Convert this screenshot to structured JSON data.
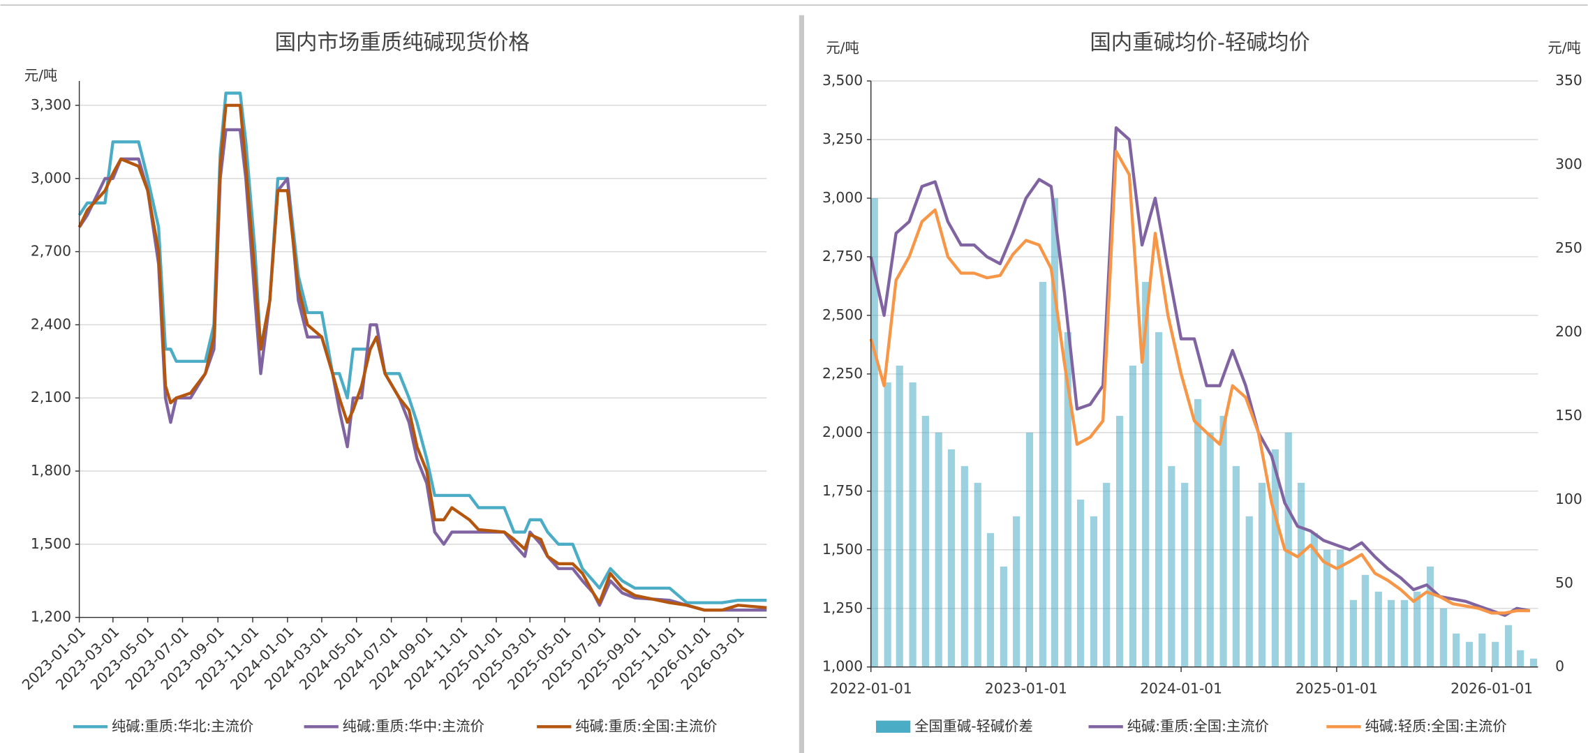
{
  "chart_data": [
    {
      "type": "line",
      "title": "国内市场重质纯碱现货价格",
      "y_label": "元/吨",
      "grid": true,
      "xlim": [
        "2023-01-01",
        "2026-04-20"
      ],
      "xticks": [
        "2023-01-01",
        "2023-03-01",
        "2023-05-01",
        "2023-07-01",
        "2023-09-01",
        "2023-11-01",
        "2024-01-01",
        "2024-03-01",
        "2024-05-01",
        "2024-07-01",
        "2024-09-01",
        "2024-11-01",
        "2025-01-01",
        "2025-03-01",
        "2025-05-01",
        "2025-07-01",
        "2025-09-01",
        "2025-11-01",
        "2026-01-01",
        "2026-03-01"
      ],
      "ylim": [
        1200,
        3400
      ],
      "yticks": [
        {
          "value": 1200,
          "label": "1,200"
        },
        {
          "value": 1500,
          "label": "1,500"
        },
        {
          "value": 1800,
          "label": "1,800"
        },
        {
          "value": 2100,
          "label": "2,100"
        },
        {
          "value": 2400,
          "label": "2,400"
        },
        {
          "value": 2700,
          "label": "2,700"
        },
        {
          "value": 3000,
          "label": "3,000"
        },
        {
          "value": 3300,
          "label": "3,300"
        }
      ],
      "x": [
        "2023-01-01",
        "2023-01-15",
        "2023-02-15",
        "2023-03-01",
        "2023-03-15",
        "2023-04-15",
        "2023-05-01",
        "2023-05-20",
        "2023-06-01",
        "2023-06-10",
        "2023-06-20",
        "2023-07-15",
        "2023-08-10",
        "2023-08-25",
        "2023-09-05",
        "2023-09-15",
        "2023-10-10",
        "2023-10-20",
        "2023-11-05",
        "2023-11-15",
        "2023-12-01",
        "2023-12-15",
        "2024-01-01",
        "2024-01-20",
        "2024-02-05",
        "2024-03-01",
        "2024-03-20",
        "2024-04-01",
        "2024-04-15",
        "2024-04-25",
        "2024-05-10",
        "2024-05-25",
        "2024-06-05",
        "2024-06-20",
        "2024-07-15",
        "2024-08-01",
        "2024-08-15",
        "2024-09-01",
        "2024-09-15",
        "2024-10-01",
        "2024-10-15",
        "2024-11-15",
        "2024-12-01",
        "2025-01-15",
        "2025-02-01",
        "2025-02-20",
        "2025-03-01",
        "2025-03-20",
        "2025-04-01",
        "2025-04-20",
        "2025-05-15",
        "2025-06-01",
        "2025-06-20",
        "2025-07-01",
        "2025-07-20",
        "2025-08-10",
        "2025-09-01",
        "2025-11-01",
        "2025-12-01",
        "2026-01-01",
        "2026-02-01",
        "2026-03-01",
        "2026-04-20"
      ],
      "series": [
        {
          "name": "纯碱:重质:华北:主流价",
          "color": "#4bacc6",
          "values": [
            2850,
            2900,
            2900,
            3150,
            3150,
            3150,
            3000,
            2800,
            2300,
            2300,
            2250,
            2250,
            2250,
            2400,
            3100,
            3350,
            3350,
            3150,
            2700,
            2300,
            2500,
            3000,
            3000,
            2600,
            2450,
            2450,
            2200,
            2200,
            2100,
            2300,
            2300,
            2300,
            2350,
            2200,
            2200,
            2100,
            2000,
            1850,
            1700,
            1700,
            1700,
            1700,
            1650,
            1650,
            1550,
            1550,
            1600,
            1600,
            1550,
            1500,
            1500,
            1400,
            1350,
            1320,
            1400,
            1350,
            1320,
            1320,
            1260,
            1260,
            1260,
            1270,
            1270
          ]
        },
        {
          "name": "纯碱:重质:华中:主流价",
          "color": "#8064a2",
          "values": [
            2800,
            2850,
            3000,
            3000,
            3080,
            3080,
            2950,
            2650,
            2100,
            2000,
            2100,
            2100,
            2200,
            2300,
            3000,
            3200,
            3200,
            3000,
            2500,
            2200,
            2500,
            2950,
            3000,
            2500,
            2350,
            2350,
            2200,
            2050,
            1900,
            2100,
            2100,
            2400,
            2400,
            2200,
            2100,
            2000,
            1850,
            1750,
            1550,
            1500,
            1550,
            1550,
            1550,
            1550,
            1500,
            1450,
            1550,
            1500,
            1450,
            1400,
            1400,
            1350,
            1300,
            1250,
            1350,
            1300,
            1280,
            1270,
            1250,
            1230,
            1230,
            1230,
            1230
          ]
        },
        {
          "name": "纯碱:重质:全国:主流价",
          "color": "#b5560f",
          "values": [
            2800,
            2870,
            2950,
            3020,
            3080,
            3050,
            2950,
            2700,
            2150,
            2080,
            2100,
            2120,
            2200,
            2350,
            3050,
            3300,
            3300,
            3050,
            2600,
            2300,
            2500,
            2950,
            2950,
            2550,
            2400,
            2350,
            2200,
            2100,
            2000,
            2050,
            2150,
            2300,
            2350,
            2200,
            2100,
            2050,
            1900,
            1800,
            1600,
            1600,
            1650,
            1600,
            1560,
            1550,
            1520,
            1480,
            1540,
            1520,
            1450,
            1420,
            1420,
            1380,
            1300,
            1260,
            1380,
            1320,
            1290,
            1260,
            1250,
            1230,
            1230,
            1250,
            1240
          ]
        }
      ]
    },
    {
      "type": "combo",
      "title": "国内重碱均价-轻碱均价",
      "y_label": "元/吨",
      "y2_label": "元/吨",
      "grid": true,
      "xlim": [
        "2022-01-01",
        "2026-04-20"
      ],
      "xticks": [
        "2022-01-01",
        "2023-01-01",
        "2024-01-01",
        "2025-01-01",
        "2026-01-01"
      ],
      "ylim": [
        1000,
        3500
      ],
      "yticks": [
        {
          "value": 1000,
          "label": "1,000"
        },
        {
          "value": 1250,
          "label": "1,250"
        },
        {
          "value": 1500,
          "label": "1,500"
        },
        {
          "value": 1750,
          "label": "1,750"
        },
        {
          "value": 2000,
          "label": "2,000"
        },
        {
          "value": 2250,
          "label": "2,250"
        },
        {
          "value": 2500,
          "label": "2,500"
        },
        {
          "value": 2750,
          "label": "2,750"
        },
        {
          "value": 3000,
          "label": "3,000"
        },
        {
          "value": 3250,
          "label": "3,250"
        },
        {
          "value": 3500,
          "label": "3,500"
        }
      ],
      "y2lim": [
        0,
        350
      ],
      "y2ticks": [
        0,
        50,
        100,
        150,
        200,
        250,
        300,
        350
      ],
      "x": [
        "2022-01-01",
        "2022-02-01",
        "2022-03-01",
        "2022-04-01",
        "2022-05-01",
        "2022-06-01",
        "2022-07-01",
        "2022-08-01",
        "2022-09-01",
        "2022-10-01",
        "2022-11-01",
        "2022-12-01",
        "2023-01-01",
        "2023-02-01",
        "2023-03-01",
        "2023-04-01",
        "2023-05-01",
        "2023-06-01",
        "2023-07-01",
        "2023-08-01",
        "2023-09-01",
        "2023-10-01",
        "2023-11-01",
        "2023-12-01",
        "2024-01-01",
        "2024-02-01",
        "2024-03-01",
        "2024-04-01",
        "2024-05-01",
        "2024-06-01",
        "2024-07-01",
        "2024-08-01",
        "2024-09-01",
        "2024-10-01",
        "2024-11-01",
        "2024-12-01",
        "2025-01-01",
        "2025-02-01",
        "2025-03-01",
        "2025-04-01",
        "2025-05-01",
        "2025-06-01",
        "2025-07-01",
        "2025-08-01",
        "2025-09-01",
        "2025-10-01",
        "2025-11-01",
        "2025-12-01",
        "2026-01-01",
        "2026-02-01",
        "2026-03-01",
        "2026-04-01"
      ],
      "series": [
        {
          "name": "全国重碱-轻碱价差",
          "type": "bar",
          "axis": "y2",
          "color": "#4bacc6",
          "values": [
            280,
            170,
            180,
            170,
            150,
            140,
            130,
            120,
            110,
            80,
            60,
            90,
            140,
            230,
            280,
            200,
            100,
            90,
            110,
            150,
            180,
            230,
            200,
            120,
            110,
            160,
            140,
            150,
            120,
            90,
            110,
            130,
            140,
            110,
            80,
            70,
            70,
            40,
            55,
            45,
            40,
            40,
            45,
            60,
            35,
            20,
            15,
            20,
            15,
            25,
            10,
            5
          ]
        },
        {
          "name": "纯碱:重质:全国:主流价",
          "type": "line",
          "color": "#8064a2",
          "values": [
            2750,
            2500,
            2850,
            2900,
            3050,
            3070,
            2900,
            2800,
            2800,
            2750,
            2720,
            2850,
            3000,
            3080,
            3050,
            2600,
            2100,
            2120,
            2200,
            3300,
            3250,
            2800,
            3000,
            2700,
            2400,
            2400,
            2200,
            2200,
            2350,
            2200,
            2000,
            1900,
            1700,
            1600,
            1580,
            1540,
            1520,
            1500,
            1530,
            1470,
            1420,
            1380,
            1330,
            1350,
            1300,
            1290,
            1280,
            1260,
            1240,
            1220,
            1250,
            1240
          ]
        },
        {
          "name": "纯碱:轻质:全国:主流价",
          "type": "line",
          "color": "#f79646",
          "values": [
            2400,
            2200,
            2650,
            2750,
            2900,
            2950,
            2750,
            2680,
            2680,
            2660,
            2670,
            2760,
            2820,
            2800,
            2700,
            2300,
            1950,
            1980,
            2050,
            3200,
            3100,
            2300,
            2850,
            2500,
            2250,
            2050,
            2000,
            1950,
            2200,
            2150,
            2000,
            1700,
            1500,
            1470,
            1520,
            1450,
            1420,
            1450,
            1480,
            1400,
            1370,
            1330,
            1280,
            1320,
            1300,
            1270,
            1260,
            1250,
            1230,
            1230,
            1240,
            1240
          ]
        }
      ]
    }
  ]
}
